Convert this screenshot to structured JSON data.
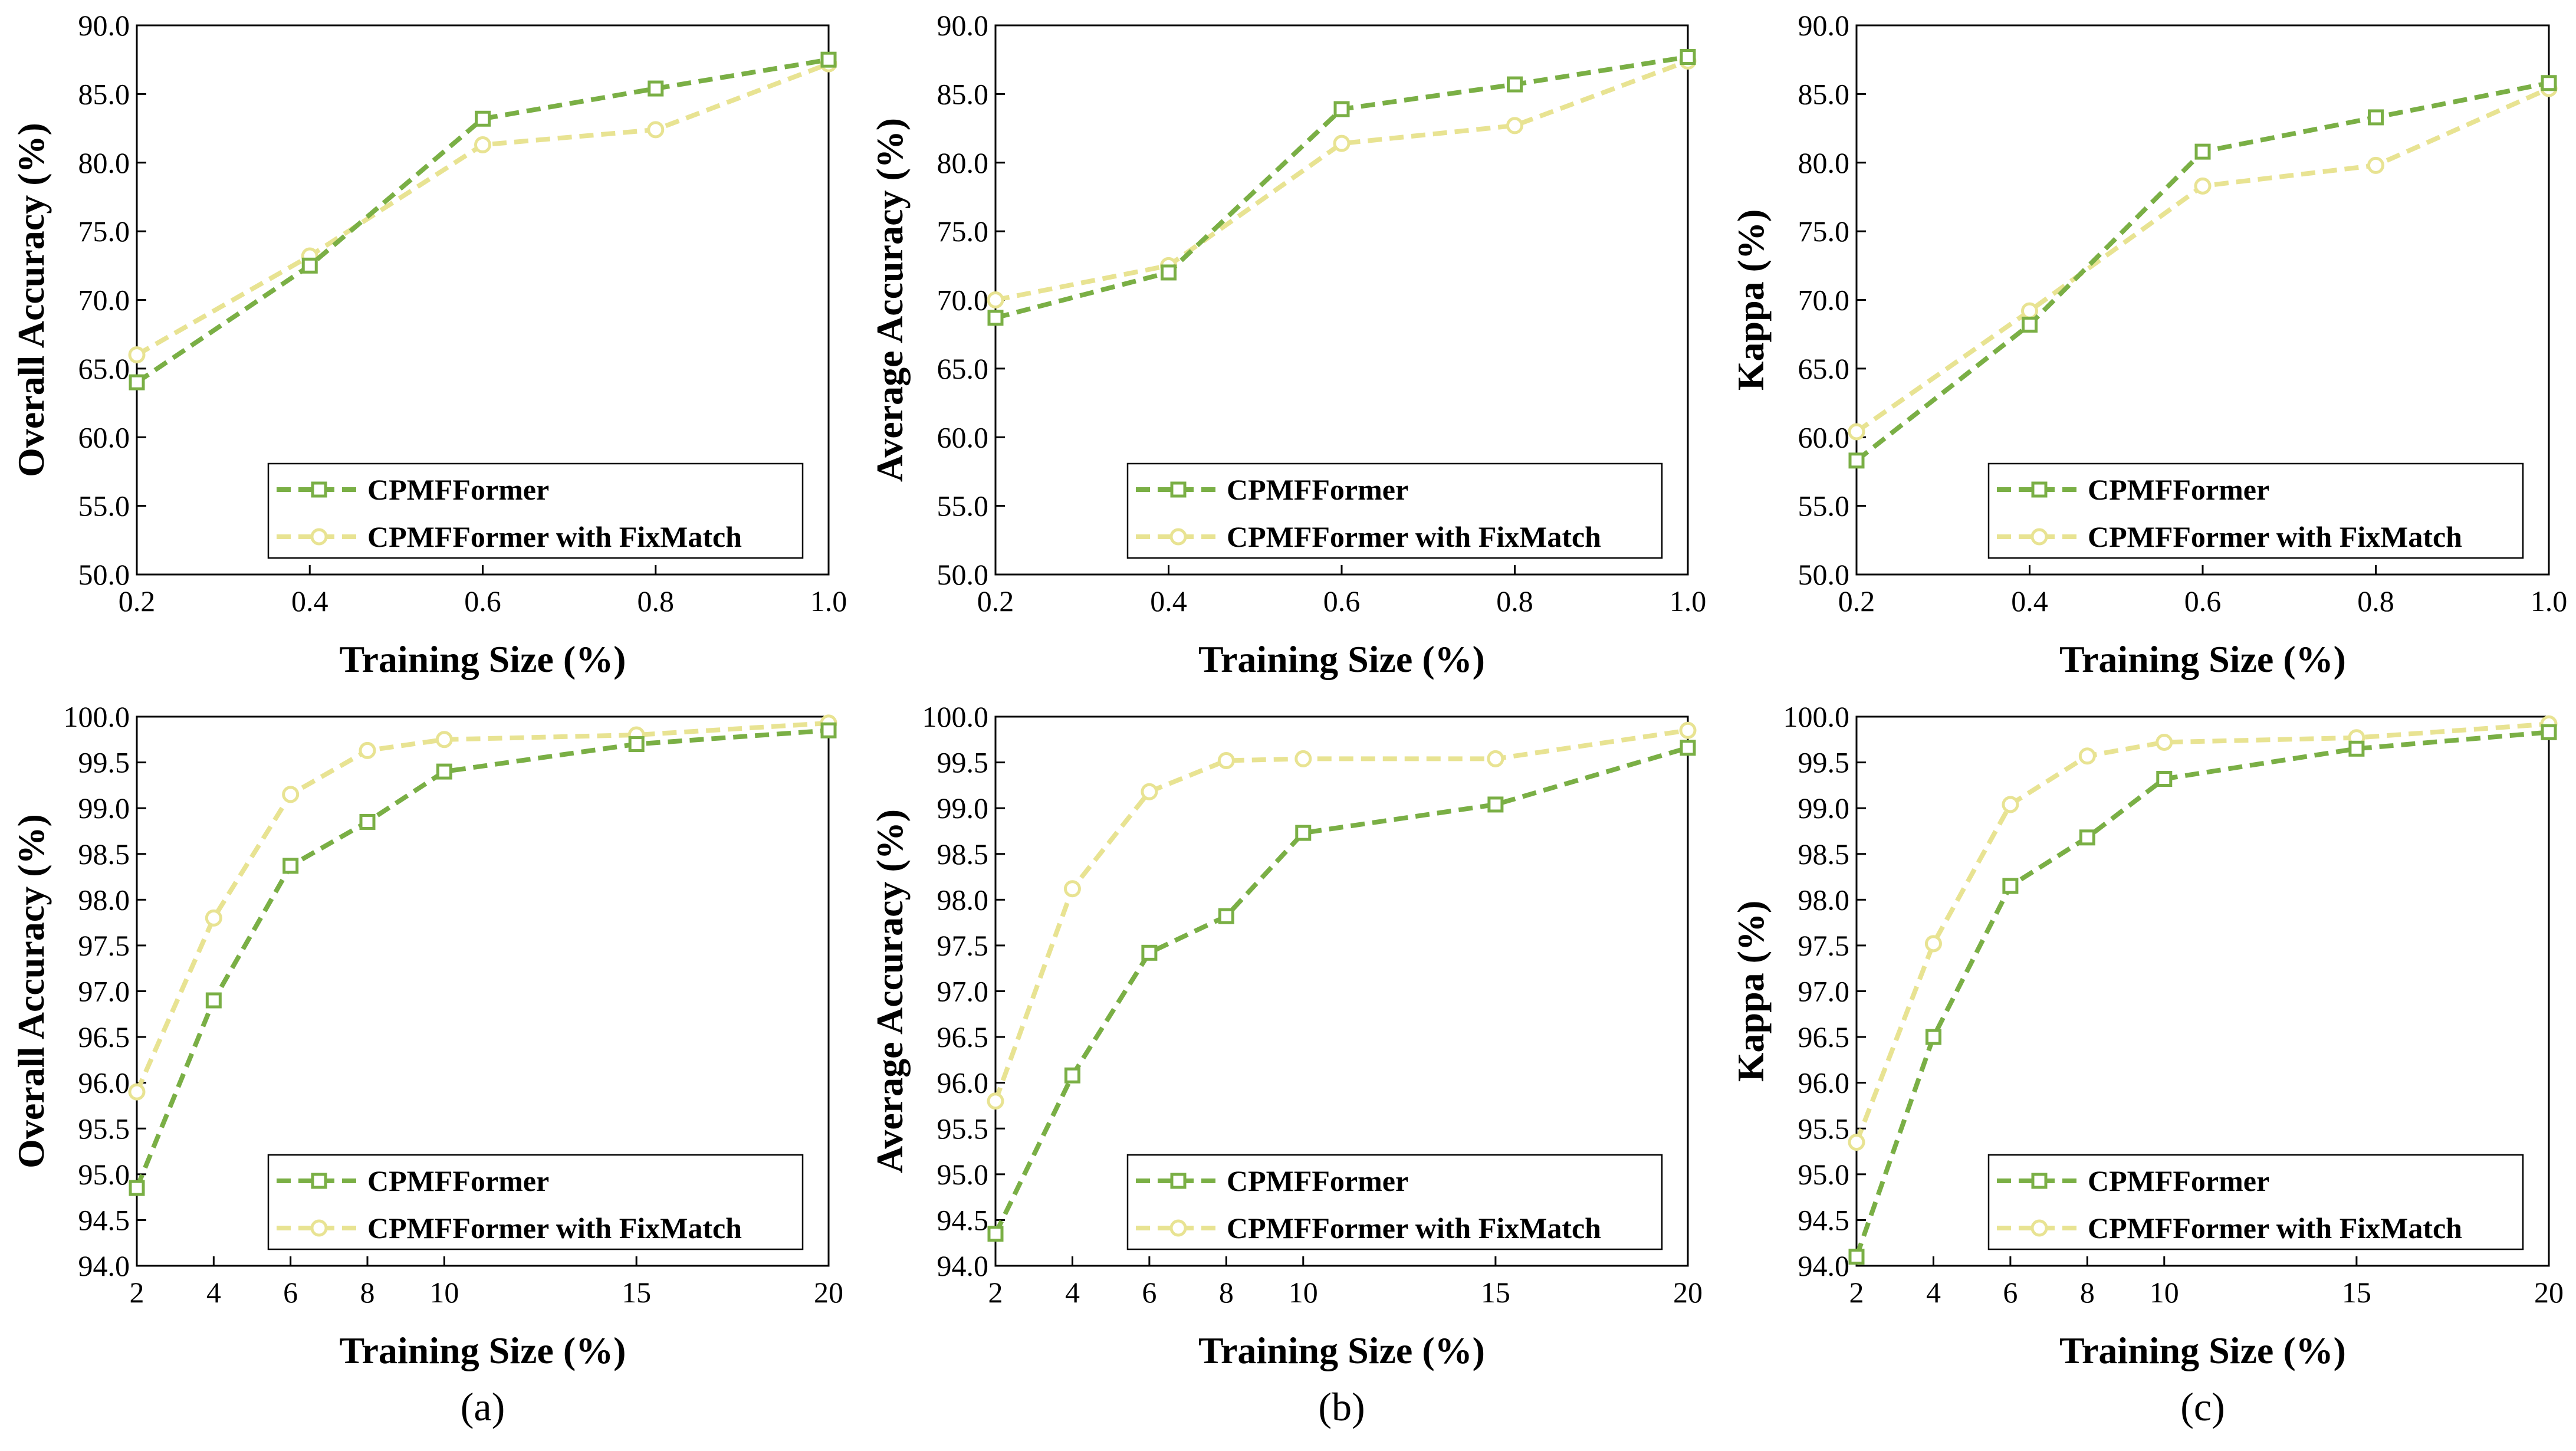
{
  "colors": {
    "series1": "#7aaf45",
    "series2": "#e8e392",
    "axis": "#000000",
    "background": "#ffffff"
  },
  "panel_labels": [
    "(a)",
    "(b)",
    "(c)"
  ],
  "chart_data": [
    {
      "type": "line",
      "xlabel": "Training Size (%)",
      "ylabel": "Overall Accuracy (%)",
      "x": [
        0.2,
        0.4,
        0.6,
        0.8,
        1.0
      ],
      "xticks": [
        "0.2",
        "0.4",
        "0.6",
        "0.8",
        "1.0"
      ],
      "ylim": [
        50.0,
        90.0
      ],
      "yticks": [
        "50.0",
        "55.0",
        "60.0",
        "65.0",
        "70.0",
        "75.0",
        "80.0",
        "85.0",
        "90.0"
      ],
      "legend": "bottom-right",
      "series": [
        {
          "name": "CPMFFormer",
          "marker": "square",
          "values": [
            64.0,
            72.5,
            83.2,
            85.4,
            87.5
          ]
        },
        {
          "name": "CPMFFormer with FixMatch",
          "marker": "circle",
          "values": [
            66.0,
            73.2,
            81.3,
            82.4,
            87.2
          ]
        }
      ]
    },
    {
      "type": "line",
      "xlabel": "Training Size (%)",
      "ylabel": "Average Accuracy (%)",
      "x": [
        0.2,
        0.4,
        0.6,
        0.8,
        1.0
      ],
      "xticks": [
        "0.2",
        "0.4",
        "0.6",
        "0.8",
        "1.0"
      ],
      "ylim": [
        50.0,
        90.0
      ],
      "yticks": [
        "50.0",
        "55.0",
        "60.0",
        "65.0",
        "70.0",
        "75.0",
        "80.0",
        "85.0",
        "90.0"
      ],
      "legend": "bottom-right",
      "series": [
        {
          "name": "CPMFFormer",
          "marker": "square",
          "values": [
            68.7,
            72.0,
            83.9,
            85.7,
            87.7
          ]
        },
        {
          "name": "CPMFFormer with FixMatch",
          "marker": "circle",
          "values": [
            70.0,
            72.5,
            81.4,
            82.7,
            87.4
          ]
        }
      ]
    },
    {
      "type": "line",
      "xlabel": "Training Size (%)",
      "ylabel": "Kappa (%)",
      "x": [
        0.2,
        0.4,
        0.6,
        0.8,
        1.0
      ],
      "xticks": [
        "0.2",
        "0.4",
        "0.6",
        "0.8",
        "1.0"
      ],
      "ylim": [
        50.0,
        90.0
      ],
      "yticks": [
        "50.0",
        "55.0",
        "60.0",
        "65.0",
        "70.0",
        "75.0",
        "80.0",
        "85.0",
        "90.0"
      ],
      "legend": "bottom-right",
      "series": [
        {
          "name": "CPMFFormer",
          "marker": "square",
          "values": [
            58.3,
            68.2,
            80.8,
            83.3,
            85.8
          ]
        },
        {
          "name": "CPMFFormer with FixMatch",
          "marker": "circle",
          "values": [
            60.4,
            69.2,
            78.3,
            79.8,
            85.4
          ]
        }
      ]
    },
    {
      "type": "line",
      "xlabel": "Training Size (%)",
      "ylabel": "Overall Accuracy (%)",
      "x": [
        2,
        4,
        6,
        8,
        10,
        15,
        20
      ],
      "xticks": [
        "2",
        "4",
        "6",
        "8",
        "10",
        "15",
        "20"
      ],
      "ylim": [
        94.0,
        100.0
      ],
      "yticks": [
        "94.0",
        "94.5",
        "95.0",
        "95.5",
        "96.0",
        "96.5",
        "97.0",
        "97.5",
        "98.0",
        "98.5",
        "99.0",
        "99.5",
        "100.0"
      ],
      "legend": "bottom-right",
      "series": [
        {
          "name": "CPMFFormer",
          "marker": "square",
          "values": [
            94.85,
            96.9,
            98.37,
            98.85,
            99.4,
            99.7,
            99.85
          ]
        },
        {
          "name": "CPMFFormer with FixMatch",
          "marker": "circle",
          "values": [
            95.9,
            97.8,
            99.15,
            99.63,
            99.75,
            99.8,
            99.93
          ]
        }
      ]
    },
    {
      "type": "line",
      "xlabel": "Training Size (%)",
      "ylabel": "Average Accuracy (%)",
      "x": [
        2,
        4,
        6,
        8,
        10,
        15,
        20
      ],
      "xticks": [
        "2",
        "4",
        "6",
        "8",
        "10",
        "15",
        "20"
      ],
      "ylim": [
        94.0,
        100.0
      ],
      "yticks": [
        "94.0",
        "94.5",
        "95.0",
        "95.5",
        "96.0",
        "96.5",
        "97.0",
        "97.5",
        "98.0",
        "98.5",
        "99.0",
        "99.5",
        "100.0"
      ],
      "legend": "bottom-right",
      "series": [
        {
          "name": "CPMFFormer",
          "marker": "square",
          "values": [
            94.35,
            96.08,
            97.42,
            97.82,
            98.73,
            99.04,
            99.66
          ]
        },
        {
          "name": "CPMFFormer with FixMatch",
          "marker": "circle",
          "values": [
            95.8,
            98.12,
            99.18,
            99.52,
            99.54,
            99.54,
            99.85
          ]
        }
      ]
    },
    {
      "type": "line",
      "xlabel": "Training Size (%)",
      "ylabel": "Kappa (%)",
      "x": [
        2,
        4,
        6,
        8,
        10,
        15,
        20
      ],
      "xticks": [
        "2",
        "4",
        "6",
        "8",
        "10",
        "15",
        "20"
      ],
      "ylim": [
        94.0,
        100.0
      ],
      "yticks": [
        "94.0",
        "94.5",
        "95.0",
        "95.5",
        "96.0",
        "96.5",
        "97.0",
        "97.5",
        "98.0",
        "98.5",
        "99.0",
        "99.5",
        "100.0"
      ],
      "legend": "bottom-right",
      "series": [
        {
          "name": "CPMFFormer",
          "marker": "square",
          "values": [
            94.1,
            96.5,
            98.15,
            98.68,
            99.32,
            99.65,
            99.83
          ]
        },
        {
          "name": "CPMFFormer with FixMatch",
          "marker": "circle",
          "values": [
            95.35,
            97.52,
            99.04,
            99.57,
            99.72,
            99.77,
            99.92
          ]
        }
      ]
    }
  ]
}
